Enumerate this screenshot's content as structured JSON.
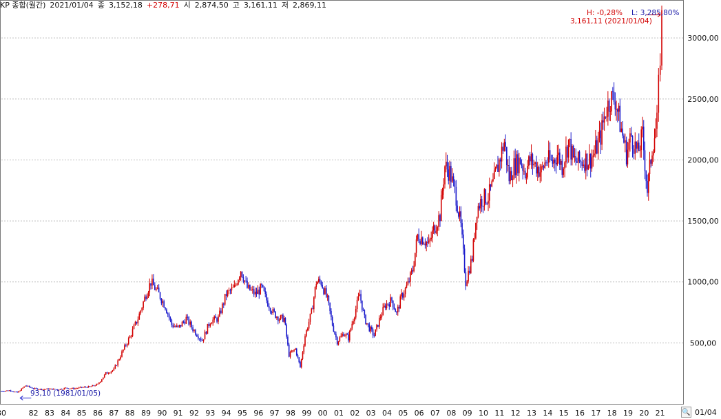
{
  "header": {
    "symbol": "KP 종합(월간)",
    "date": "2021/01/04",
    "close_label": "종",
    "close_value": "3,152,18",
    "change": "+278,71",
    "open_label": "시",
    "open_value": "2,874,50",
    "high_label": "고",
    "high_value": "3,161,11",
    "low_label": "저",
    "low_value": "2,869,11"
  },
  "annotations": {
    "hl_h": "H: -0,28%",
    "hl_l": "L: 3,285,80%",
    "max_label": "3,161,11 (2021/01/04)",
    "min_label": "93,10 (1981/01/05)",
    "corner_date": "01/04",
    "corner_icon": "magnifier-icon"
  },
  "colors": {
    "up": "#d20000",
    "down": "#1a1acc",
    "grid": "#bdbdbd"
  },
  "chart_data": {
    "type": "candlestick",
    "x_tick_labels": [
      "80",
      "82",
      "83",
      "84",
      "85",
      "86",
      "87",
      "88",
      "89",
      "90",
      "91",
      "92",
      "93",
      "94",
      "95",
      "96",
      "97",
      "98",
      "99",
      "00",
      "01",
      "02",
      "03",
      "04",
      "05",
      "06",
      "07",
      "08",
      "09",
      "10",
      "11",
      "12",
      "13",
      "14",
      "15",
      "16",
      "17",
      "18",
      "19",
      "20",
      "21"
    ],
    "y_tick_labels": [
      "500,00",
      "1000,00",
      "1500,00",
      "2000,00",
      "2500,00",
      "3000,00"
    ],
    "y_ticks": [
      500,
      1000,
      1500,
      2000,
      2500,
      3000
    ],
    "ylim": [
      0,
      3300
    ],
    "xlim": [
      1980.0,
      2021.4
    ],
    "grid": true,
    "series_path": [
      [
        1980.0,
        105
      ],
      [
        1980.5,
        110
      ],
      [
        1981.0,
        93
      ],
      [
        1981.5,
        150
      ],
      [
        1982.0,
        125
      ],
      [
        1982.5,
        120
      ],
      [
        1983.0,
        122
      ],
      [
        1983.5,
        118
      ],
      [
        1984.0,
        130
      ],
      [
        1984.5,
        125
      ],
      [
        1985.0,
        135
      ],
      [
        1985.5,
        140
      ],
      [
        1986.0,
        160
      ],
      [
        1986.5,
        250
      ],
      [
        1987.0,
        280
      ],
      [
        1987.5,
        420
      ],
      [
        1988.0,
        550
      ],
      [
        1988.5,
        700
      ],
      [
        1989.0,
        900
      ],
      [
        1989.3,
        1000
      ],
      [
        1989.8,
        900
      ],
      [
        1990.2,
        800
      ],
      [
        1990.6,
        650
      ],
      [
        1991.0,
        620
      ],
      [
        1991.5,
        700
      ],
      [
        1992.0,
        600
      ],
      [
        1992.5,
        520
      ],
      [
        1993.0,
        680
      ],
      [
        1993.5,
        700
      ],
      [
        1994.0,
        900
      ],
      [
        1994.5,
        950
      ],
      [
        1994.9,
        1100
      ],
      [
        1995.3,
        950
      ],
      [
        1995.8,
        900
      ],
      [
        1996.2,
        950
      ],
      [
        1996.5,
        850
      ],
      [
        1996.9,
        750
      ],
      [
        1997.3,
        700
      ],
      [
        1997.6,
        700
      ],
      [
        1997.9,
        400
      ],
      [
        1998.3,
        450
      ],
      [
        1998.6,
        300
      ],
      [
        1998.9,
        560
      ],
      [
        1999.3,
        750
      ],
      [
        1999.6,
        1000
      ],
      [
        1999.9,
        1000
      ],
      [
        2000.3,
        850
      ],
      [
        2000.6,
        650
      ],
      [
        2000.9,
        510
      ],
      [
        2001.3,
        580
      ],
      [
        2001.6,
        540
      ],
      [
        2001.9,
        700
      ],
      [
        2002.3,
        900
      ],
      [
        2002.6,
        700
      ],
      [
        2002.9,
        620
      ],
      [
        2003.2,
        560
      ],
      [
        2003.6,
        720
      ],
      [
        2003.9,
        810
      ],
      [
        2004.3,
        850
      ],
      [
        2004.6,
        740
      ],
      [
        2004.9,
        880
      ],
      [
        2005.3,
        980
      ],
      [
        2005.6,
        1100
      ],
      [
        2005.9,
        1380
      ],
      [
        2006.3,
        1350
      ],
      [
        2006.6,
        1300
      ],
      [
        2006.9,
        1430
      ],
      [
        2007.3,
        1550
      ],
      [
        2007.6,
        1950
      ],
      [
        2007.9,
        1900
      ],
      [
        2008.3,
        1700
      ],
      [
        2008.6,
        1450
      ],
      [
        2008.9,
        1000
      ],
      [
        2009.3,
        1200
      ],
      [
        2009.6,
        1600
      ],
      [
        2009.9,
        1680
      ],
      [
        2010.3,
        1700
      ],
      [
        2010.6,
        1800
      ],
      [
        2010.9,
        1950
      ],
      [
        2011.3,
        2150
      ],
      [
        2011.6,
        1850
      ],
      [
        2011.9,
        1950
      ],
      [
        2012.3,
        2000
      ],
      [
        2012.6,
        1900
      ],
      [
        2012.9,
        2000
      ],
      [
        2013.3,
        1950
      ],
      [
        2013.6,
        1900
      ],
      [
        2013.9,
        2000
      ],
      [
        2014.3,
        1980
      ],
      [
        2014.6,
        2050
      ],
      [
        2014.9,
        1950
      ],
      [
        2015.3,
        2150
      ],
      [
        2015.6,
        2000
      ],
      [
        2015.9,
        1980
      ],
      [
        2016.3,
        2000
      ],
      [
        2016.6,
        2000
      ],
      [
        2016.9,
        2050
      ],
      [
        2017.3,
        2200
      ],
      [
        2017.6,
        2400
      ],
      [
        2017.9,
        2500
      ],
      [
        2018.2,
        2500
      ],
      [
        2018.5,
        2300
      ],
      [
        2018.9,
        2050
      ],
      [
        2019.2,
        2200
      ],
      [
        2019.6,
        2050
      ],
      [
        2019.9,
        2200
      ],
      [
        2020.2,
        1750
      ],
      [
        2020.5,
        2100
      ],
      [
        2020.8,
        2300
      ],
      [
        2021.0,
        2870
      ],
      [
        2021.1,
        3152
      ]
    ],
    "max_point": {
      "x": 2021.1,
      "y": 3161.11
    },
    "min_point": {
      "x": 1981.0,
      "y": 93.1
    }
  }
}
